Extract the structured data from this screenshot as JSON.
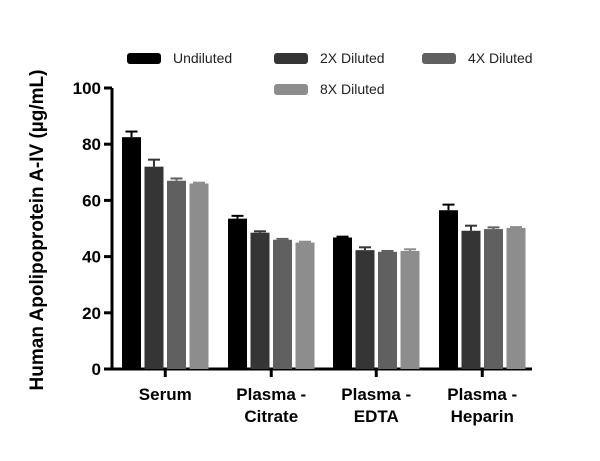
{
  "chart_data": {
    "type": "bar",
    "title": "",
    "xlabel": "",
    "ylabel": "Human Apolipoprotein A-IV (µg/mL)",
    "ylim": [
      0,
      100
    ],
    "yticks": [
      0,
      20,
      40,
      60,
      80,
      100
    ],
    "categories": [
      [
        "Serum"
      ],
      [
        "Plasma -",
        "Citrate"
      ],
      [
        "Plasma -",
        "EDTA"
      ],
      [
        "Plasma -",
        "Heparin"
      ]
    ],
    "series": [
      {
        "name": "Undiluted",
        "color": "#000000",
        "values": [
          82.5,
          53.5,
          46.8,
          56.5
        ],
        "errors": [
          2.0,
          1.0,
          0.3,
          2.0
        ]
      },
      {
        "name": "2X Diluted",
        "color": "#353535",
        "values": [
          72.0,
          48.5,
          42.3,
          49.2
        ],
        "errors": [
          2.5,
          0.5,
          1.0,
          1.8
        ]
      },
      {
        "name": "4X Diluted",
        "color": "#606060",
        "values": [
          67.0,
          46.0,
          41.7,
          49.8
        ],
        "errors": [
          0.8,
          0.3,
          0.3,
          0.6
        ]
      },
      {
        "name": "8X Diluted",
        "color": "#8d8d8d",
        "values": [
          66.0,
          45.0,
          42.0,
          50.2
        ],
        "errors": [
          0.3,
          0.3,
          0.6,
          0.3
        ]
      }
    ],
    "legend_position": "top",
    "grid": false
  }
}
